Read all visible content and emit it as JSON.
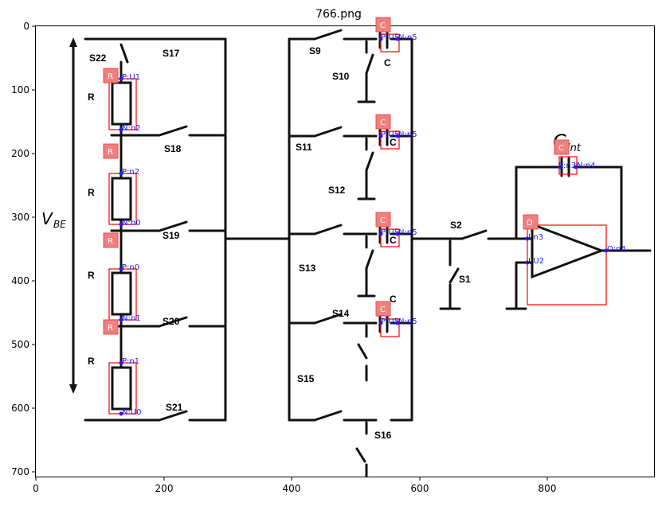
{
  "title": "766.png",
  "axes": {
    "xticks": [
      "0",
      "200",
      "400",
      "600",
      "800"
    ],
    "yticks": [
      "0",
      "100",
      "200",
      "300",
      "400",
      "500",
      "600",
      "700"
    ]
  },
  "circuit": {
    "vbe_label": "V",
    "vbe_sub": "BE",
    "cint_label": "C",
    "cint_sub": "int",
    "resistor_labels": [
      "R",
      "R",
      "R",
      "R"
    ],
    "cap_labels": [
      "C",
      "C",
      "C",
      "C"
    ],
    "switch_labels": [
      "S22",
      "S17",
      "S18",
      "S19",
      "S20",
      "S21",
      "S9",
      "S10",
      "S11",
      "S12",
      "S13",
      "S14",
      "S15",
      "S16",
      "S2",
      "S1"
    ]
  },
  "annotations": {
    "tags": [
      "R",
      "R",
      "R",
      "R",
      "C",
      "C",
      "C",
      "C",
      "C",
      "D"
    ],
    "pins": [
      "P:U1",
      "N:n2",
      "P:n2",
      "N:n0",
      "P:n0",
      "N:n1",
      "P:n1",
      "N:U0",
      "P:U5",
      "N:n5",
      "P:U5",
      "N:n5",
      "P:U5",
      "N:n5",
      "P:U5",
      "N:n5",
      "P:n3",
      "N:n4",
      "I:n3",
      "I:U2",
      "O:n4"
    ]
  }
}
